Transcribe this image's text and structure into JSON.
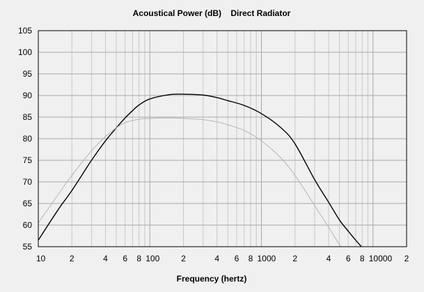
{
  "chart_data": {
    "type": "line",
    "title": "Acoustical Power (dB)    Direct Radiator",
    "xlabel": "Frequency (hertz)",
    "ylabel": "",
    "x_scale": "log",
    "xlim": [
      10,
      20000
    ],
    "ylim": [
      55,
      105
    ],
    "y_ticks": [
      55,
      60,
      65,
      70,
      75,
      80,
      85,
      90,
      95,
      100,
      105
    ],
    "x_ticks": [
      {
        "value": 10,
        "label": "10"
      },
      {
        "value": 20,
        "label": "2"
      },
      {
        "value": 40,
        "label": "4"
      },
      {
        "value": 60,
        "label": "6"
      },
      {
        "value": 80,
        "label": "8"
      },
      {
        "value": 100,
        "label": "100"
      },
      {
        "value": 200,
        "label": "2"
      },
      {
        "value": 400,
        "label": "4"
      },
      {
        "value": 600,
        "label": "6"
      },
      {
        "value": 800,
        "label": "8"
      },
      {
        "value": 1000,
        "label": "1000"
      },
      {
        "value": 2000,
        "label": "2"
      },
      {
        "value": 4000,
        "label": "4"
      },
      {
        "value": 6000,
        "label": "6"
      },
      {
        "value": 8000,
        "label": "8"
      },
      {
        "value": 10000,
        "label": "10000"
      },
      {
        "value": 20000,
        "label": "2"
      }
    ],
    "grid": true,
    "colors": {
      "series_main": "#000000",
      "series_light": "#b4b4b4",
      "grid": "#c8c8c8",
      "grid_major": "#a8a8a8"
    },
    "series": [
      {
        "color": "#000000",
        "x": [
          10,
          15,
          20,
          30,
          40,
          50,
          60,
          70,
          80,
          100,
          150,
          200,
          300,
          400,
          500,
          700,
          1000,
          1500,
          2000,
          3000,
          4000,
          5000,
          6000,
          7000,
          8000
        ],
        "y": [
          56.5,
          63.5,
          68,
          75,
          79.5,
          82.5,
          84.8,
          86.5,
          87.8,
          89.2,
          90.2,
          90.3,
          90.1,
          89.5,
          88.8,
          87.7,
          85.8,
          82.5,
          78.8,
          70.5,
          65.3,
          61.2,
          58.6,
          56.5,
          54.8
        ]
      },
      {
        "color": "#b4b4b4",
        "x": [
          10,
          15,
          20,
          30,
          40,
          50,
          60,
          80,
          100,
          150,
          200,
          300,
          400,
          500,
          700,
          1000,
          1500,
          2000,
          3000,
          4000,
          5000,
          5500
        ],
        "y": [
          60.5,
          67,
          71.5,
          77.2,
          80.5,
          82.5,
          83.7,
          84.5,
          84.7,
          84.8,
          84.7,
          84.4,
          83.9,
          83.2,
          81.9,
          79.5,
          75.5,
          71.5,
          64.5,
          59.5,
          55.5,
          54
        ]
      }
    ]
  }
}
